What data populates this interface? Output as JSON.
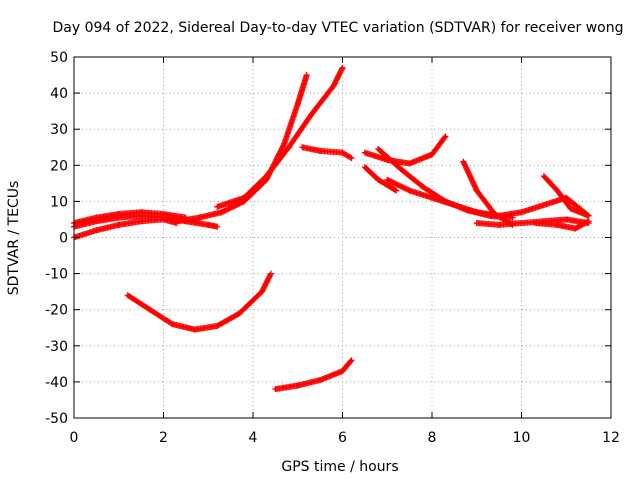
{
  "chart_data": {
    "type": "scatter",
    "title": "Day 094 of 2022, Sidereal Day-to-day VTEC variation (SDTVAR) for receiver wong",
    "xlabel": "GPS time / hours",
    "ylabel": "SDTVAR / TECUs",
    "xlim": [
      0,
      12
    ],
    "ylim": [
      -50,
      50
    ],
    "xticks": [
      "0",
      "2",
      "4",
      "6",
      "8",
      "10",
      "12"
    ],
    "yticks": [
      "-50",
      "-40",
      "-30",
      "-20",
      "-10",
      "0",
      "10",
      "20",
      "30",
      "40",
      "50"
    ],
    "grid": true,
    "legend": "none",
    "color": "#ff0000",
    "series": [
      {
        "x": [
          0.0,
          0.5,
          1.0,
          1.5,
          2.0,
          2.5,
          3.0,
          3.2
        ],
        "y": [
          3.0,
          4.5,
          5.5,
          6.0,
          5.5,
          4.5,
          3.5,
          3.0
        ]
      },
      {
        "x": [
          0.0,
          0.5,
          1.0,
          1.5,
          2.0,
          2.5
        ],
        "y": [
          4.0,
          5.5,
          6.5,
          7.0,
          6.5,
          5.5
        ]
      },
      {
        "x": [
          0.0,
          0.5,
          1.0,
          1.5,
          2.0,
          2.3
        ],
        "y": [
          0.0,
          2.0,
          3.5,
          4.5,
          5.0,
          4.0
        ]
      },
      {
        "x": [
          2.3,
          2.8,
          3.3,
          3.8,
          4.3,
          4.7,
          5.0,
          5.2
        ],
        "y": [
          4.5,
          5.5,
          7.0,
          10.0,
          16.0,
          26.0,
          37.0,
          45.0
        ]
      },
      {
        "x": [
          3.2,
          3.8,
          4.3,
          4.8,
          5.3,
          5.8,
          6.0
        ],
        "y": [
          8.5,
          11.0,
          17.0,
          25.0,
          34.0,
          42.0,
          47.0
        ]
      },
      {
        "x": [
          5.1,
          5.5,
          6.0,
          6.2
        ],
        "y": [
          25.0,
          24.0,
          23.5,
          22.0
        ]
      },
      {
        "x": [
          6.5,
          7.0,
          7.5,
          8.0,
          8.3
        ],
        "y": [
          23.5,
          21.5,
          20.5,
          23.0,
          28.0
        ]
      },
      {
        "x": [
          6.5,
          6.8,
          7.2
        ],
        "y": [
          19.5,
          16.0,
          13.0
        ]
      },
      {
        "x": [
          6.8,
          7.3,
          7.8,
          8.3,
          8.8,
          9.3,
          9.8
        ],
        "y": [
          24.5,
          19.0,
          14.0,
          10.0,
          7.5,
          6.0,
          5.5
        ]
      },
      {
        "x": [
          7.0,
          7.5,
          8.0,
          8.5,
          9.0,
          9.5,
          10.0,
          10.5,
          11.0,
          11.5
        ],
        "y": [
          16.0,
          13.0,
          11.0,
          9.0,
          7.0,
          6.0,
          7.0,
          9.0,
          11.0,
          6.0
        ]
      },
      {
        "x": [
          8.7,
          9.0,
          9.4,
          9.8
        ],
        "y": [
          21.0,
          13.0,
          6.5,
          3.5
        ]
      },
      {
        "x": [
          9.0,
          9.5,
          10.0,
          10.5,
          11.0,
          11.5
        ],
        "y": [
          4.0,
          3.5,
          4.0,
          4.5,
          5.0,
          4.0
        ]
      },
      {
        "x": [
          10.5,
          10.8,
          11.1,
          11.5
        ],
        "y": [
          17.0,
          13.0,
          8.0,
          6.0
        ]
      },
      {
        "x": [
          10.3,
          10.8,
          11.2,
          11.5
        ],
        "y": [
          4.0,
          3.5,
          2.5,
          4.5
        ]
      },
      {
        "x": [
          1.2,
          1.7,
          2.2,
          2.7,
          3.2,
          3.7,
          4.2,
          4.4
        ],
        "y": [
          -16.0,
          -20.0,
          -24.0,
          -25.5,
          -24.5,
          -21.0,
          -15.0,
          -10.0
        ]
      },
      {
        "x": [
          4.5,
          5.0,
          5.5,
          6.0,
          6.2
        ],
        "y": [
          -42.0,
          -41.0,
          -39.5,
          -37.0,
          -34.0
        ]
      }
    ]
  }
}
